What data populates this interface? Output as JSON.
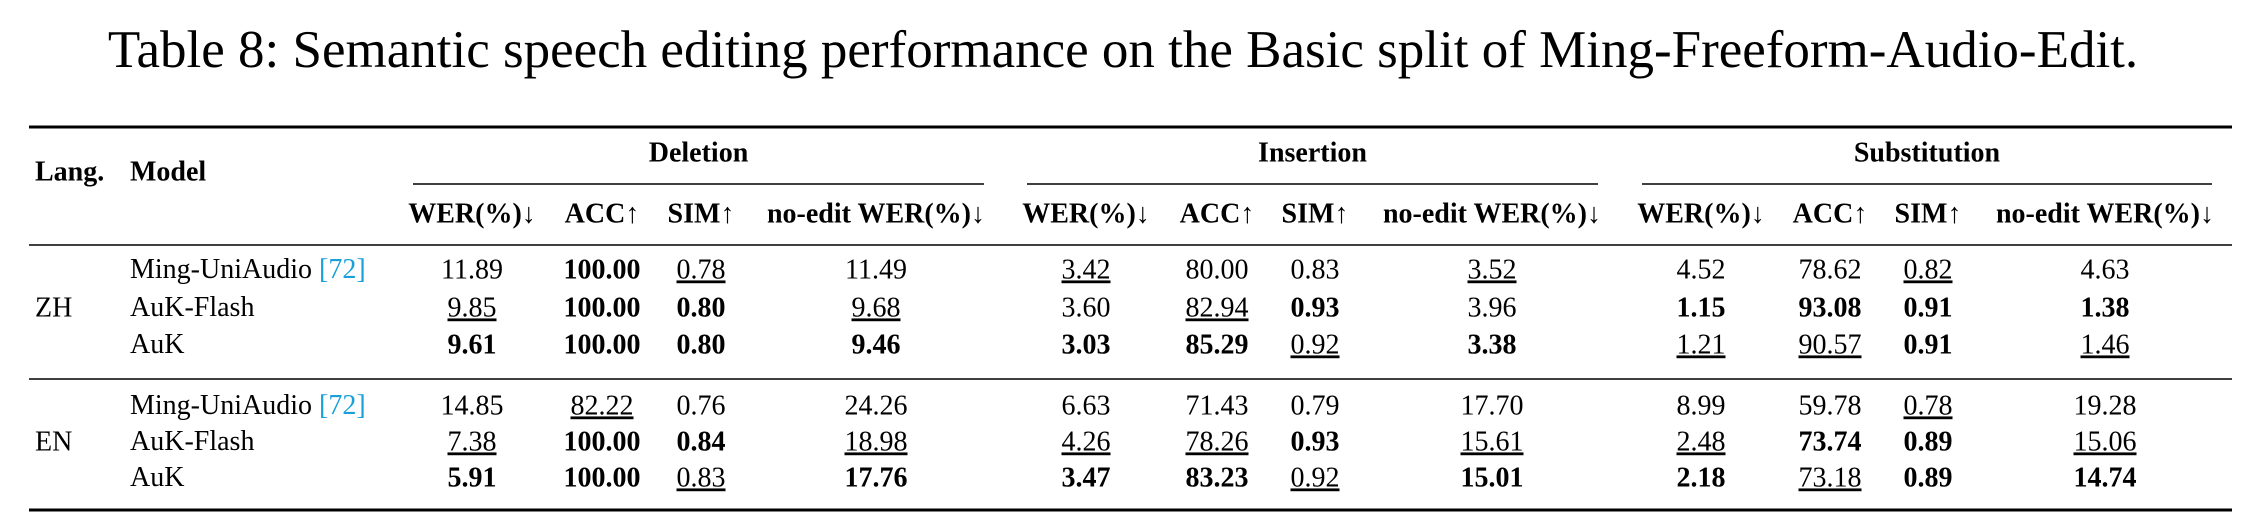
{
  "caption": "Table 8: Semantic speech editing performance on the Basic split of Ming-Freeform-Audio-Edit.",
  "table": {
    "columns": {
      "lang": "Lang.",
      "model": "Model"
    },
    "groups": [
      {
        "name": "Deletion",
        "metrics": [
          "WER(%)↓",
          "ACC↑",
          "SIM↑",
          "no-edit WER(%)↓"
        ]
      },
      {
        "name": "Insertion",
        "metrics": [
          "WER(%)↓",
          "ACC↑",
          "SIM↑",
          "no-edit WER(%)↓"
        ]
      },
      {
        "name": "Substitution",
        "metrics": [
          "WER(%)↓",
          "ACC↑",
          "SIM↑",
          "no-edit WER(%)↓"
        ]
      }
    ],
    "sections": [
      {
        "lang": "ZH",
        "rows": [
          {
            "model": "Ming-UniAudio",
            "cite": "[72]",
            "cells": [
              {
                "text": "11.89"
              },
              {
                "text": "100.00",
                "bold": true
              },
              {
                "text": "0.78",
                "underline": true
              },
              {
                "text": "11.49"
              },
              {
                "text": "3.42",
                "underline": true
              },
              {
                "text": "80.00"
              },
              {
                "text": "0.83"
              },
              {
                "text": "3.52",
                "underline": true
              },
              {
                "text": "4.52"
              },
              {
                "text": "78.62"
              },
              {
                "text": "0.82",
                "underline": true
              },
              {
                "text": "4.63"
              }
            ]
          },
          {
            "model": "AuK-Flash",
            "cells": [
              {
                "text": "9.85",
                "underline": true
              },
              {
                "text": "100.00",
                "bold": true
              },
              {
                "text": "0.80",
                "bold": true
              },
              {
                "text": "9.68",
                "underline": true
              },
              {
                "text": "3.60"
              },
              {
                "text": "82.94",
                "underline": true
              },
              {
                "text": "0.93",
                "bold": true
              },
              {
                "text": "3.96"
              },
              {
                "text": "1.15",
                "bold": true
              },
              {
                "text": "93.08",
                "bold": true
              },
              {
                "text": "0.91",
                "bold": true
              },
              {
                "text": "1.38",
                "bold": true
              }
            ]
          },
          {
            "model": "AuK",
            "cells": [
              {
                "text": "9.61",
                "bold": true
              },
              {
                "text": "100.00",
                "bold": true
              },
              {
                "text": "0.80",
                "bold": true
              },
              {
                "text": "9.46",
                "bold": true
              },
              {
                "text": "3.03",
                "bold": true
              },
              {
                "text": "85.29",
                "bold": true
              },
              {
                "text": "0.92",
                "underline": true
              },
              {
                "text": "3.38",
                "bold": true
              },
              {
                "text": "1.21",
                "underline": true
              },
              {
                "text": "90.57",
                "underline": true
              },
              {
                "text": "0.91",
                "bold": true
              },
              {
                "text": "1.46",
                "underline": true
              }
            ]
          }
        ]
      },
      {
        "lang": "EN",
        "rows": [
          {
            "model": "Ming-UniAudio",
            "cite": "[72]",
            "cells": [
              {
                "text": "14.85"
              },
              {
                "text": "82.22",
                "underline": true
              },
              {
                "text": "0.76"
              },
              {
                "text": "24.26"
              },
              {
                "text": "6.63"
              },
              {
                "text": "71.43"
              },
              {
                "text": "0.79"
              },
              {
                "text": "17.70"
              },
              {
                "text": "8.99"
              },
              {
                "text": "59.78"
              },
              {
                "text": "0.78",
                "underline": true
              },
              {
                "text": "19.28"
              }
            ]
          },
          {
            "model": "AuK-Flash",
            "cells": [
              {
                "text": "7.38",
                "underline": true
              },
              {
                "text": "100.00",
                "bold": true
              },
              {
                "text": "0.84",
                "bold": true
              },
              {
                "text": "18.98",
                "underline": true
              },
              {
                "text": "4.26",
                "underline": true
              },
              {
                "text": "78.26",
                "underline": true
              },
              {
                "text": "0.93",
                "bold": true
              },
              {
                "text": "15.61",
                "underline": true
              },
              {
                "text": "2.48",
                "underline": true
              },
              {
                "text": "73.74",
                "bold": true
              },
              {
                "text": "0.89",
                "bold": true
              },
              {
                "text": "15.06",
                "underline": true
              }
            ]
          },
          {
            "model": "AuK",
            "cells": [
              {
                "text": "5.91",
                "bold": true
              },
              {
                "text": "100.00",
                "bold": true
              },
              {
                "text": "0.83",
                "underline": true
              },
              {
                "text": "17.76",
                "bold": true
              },
              {
                "text": "3.47",
                "bold": true
              },
              {
                "text": "83.23",
                "bold": true
              },
              {
                "text": "0.92",
                "underline": true
              },
              {
                "text": "15.01",
                "bold": true
              },
              {
                "text": "2.18",
                "bold": true
              },
              {
                "text": "73.18",
                "underline": true
              },
              {
                "text": "0.89",
                "bold": true
              },
              {
                "text": "14.74",
                "bold": true
              }
            ]
          }
        ]
      }
    ]
  }
}
